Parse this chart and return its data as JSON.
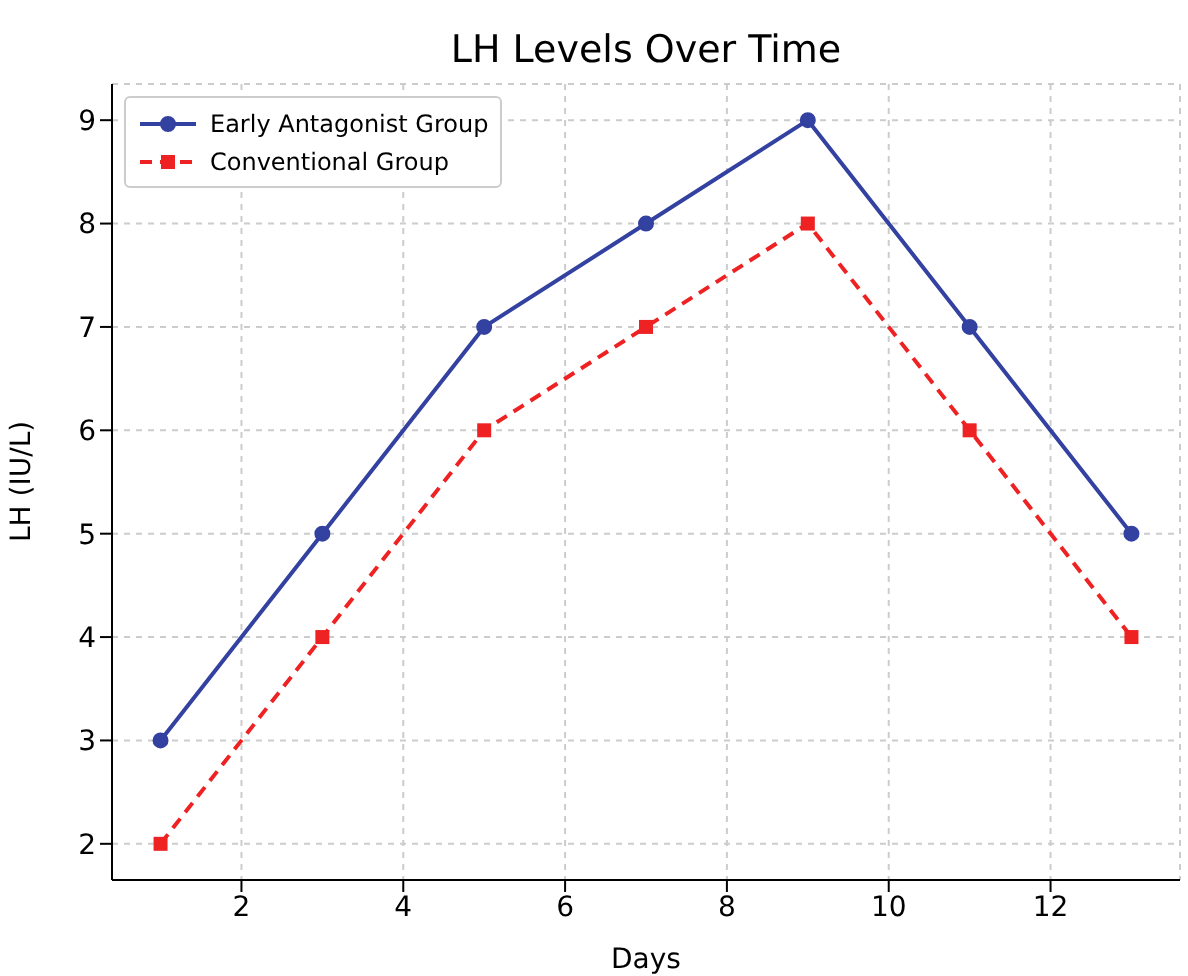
{
  "chart_data": {
    "type": "line",
    "title": "LH Levels Over Time",
    "xlabel": "Days",
    "ylabel": "LH (IU/L)",
    "x": [
      1,
      3,
      5,
      7,
      9,
      11,
      13
    ],
    "series": [
      {
        "name": "Early Antagonist Group",
        "color": "#3341a0",
        "values": [
          3,
          5,
          7,
          8,
          9,
          7,
          5
        ],
        "marker": "circle",
        "line_style": "solid"
      },
      {
        "name": "Conventional Group",
        "color": "#ee2222",
        "values": [
          2,
          4,
          6,
          7,
          8,
          6,
          4
        ],
        "marker": "square",
        "line_style": "dashed"
      }
    ],
    "xlim": [
      0.4,
      13.6
    ],
    "xticks": [
      2,
      4,
      6,
      8,
      10,
      12
    ],
    "ylim": [
      1.65,
      9.35
    ],
    "yticks": [
      2,
      3,
      4,
      5,
      6,
      7,
      8,
      9
    ],
    "grid": true,
    "legend": "top left"
  }
}
